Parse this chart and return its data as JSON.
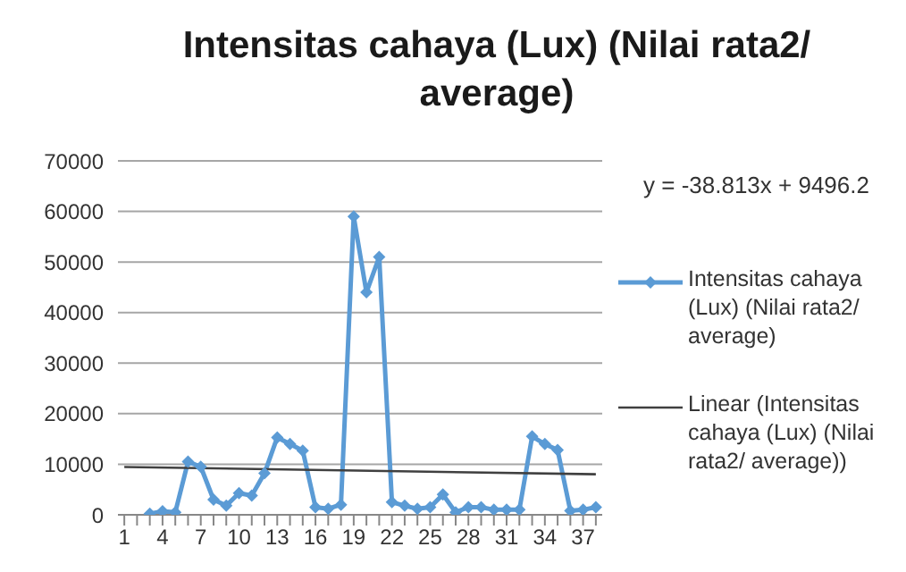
{
  "chart_data": {
    "type": "line",
    "title": "Intensitas cahaya (Lux) (Nilai rata2/ average)",
    "annotations": [
      "y = -38.813x + 9496.2"
    ],
    "xlim": [
      0.5,
      38.5
    ],
    "xticks": [
      1,
      {
        "value": 2,
        "label": null
      },
      {
        "value": 3,
        "label": null
      },
      4,
      {
        "value": 5,
        "label": null
      },
      {
        "value": 6,
        "label": null
      },
      7,
      {
        "value": 8,
        "label": null
      },
      {
        "value": 9,
        "label": null
      },
      10,
      {
        "value": 11,
        "label": null
      },
      {
        "value": 12,
        "label": null
      },
      13,
      {
        "value": 14,
        "label": null
      },
      {
        "value": 15,
        "label": null
      },
      16,
      {
        "value": 17,
        "label": null
      },
      {
        "value": 18,
        "label": null
      },
      19,
      {
        "value": 20,
        "label": null
      },
      {
        "value": 21,
        "label": null
      },
      22,
      {
        "value": 23,
        "label": null
      },
      {
        "value": 24,
        "label": null
      },
      25,
      {
        "value": 26,
        "label": null
      },
      {
        "value": 27,
        "label": null
      },
      28,
      {
        "value": 29,
        "label": null
      },
      {
        "value": 30,
        "label": null
      },
      31,
      {
        "value": 32,
        "label": null
      },
      {
        "value": 33,
        "label": null
      },
      34,
      {
        "value": 35,
        "label": null
      },
      {
        "value": 36,
        "label": null
      },
      37,
      {
        "value": 38,
        "label": null
      }
    ],
    "ylim": [
      0,
      70000
    ],
    "yticks": [
      0,
      10000,
      20000,
      30000,
      40000,
      50000,
      60000,
      70000
    ],
    "grid": "y",
    "legend": "right",
    "series": [
      {
        "name": "Intensitas cahaya (Lux) (Nilai rata2/ average)",
        "color": "#5b9bd5",
        "marker": "diamond",
        "x": [
          3,
          4,
          5,
          6,
          7,
          8,
          9,
          10,
          11,
          12,
          13,
          14,
          15,
          16,
          17,
          18,
          19,
          20,
          21,
          22,
          23,
          24,
          25,
          26,
          27,
          28,
          29,
          30,
          31,
          32,
          33,
          34,
          35,
          36,
          37,
          38
        ],
        "values": [
          200,
          700,
          500,
          10500,
          9500,
          3000,
          1800,
          4300,
          3800,
          8200,
          15300,
          14000,
          12700,
          1500,
          1200,
          2000,
          59000,
          44000,
          51000,
          2500,
          1800,
          1200,
          1500,
          4000,
          500,
          1500,
          1500,
          1000,
          1000,
          1000,
          15500,
          14000,
          12800,
          800,
          1000,
          1500
        ]
      },
      {
        "name": "Linear (Intensitas cahaya (Lux) (Nilai rata2/ average))",
        "color": "#404040",
        "marker": "none",
        "x": [
          1,
          38
        ],
        "values": [
          9457,
          8021
        ]
      }
    ]
  }
}
